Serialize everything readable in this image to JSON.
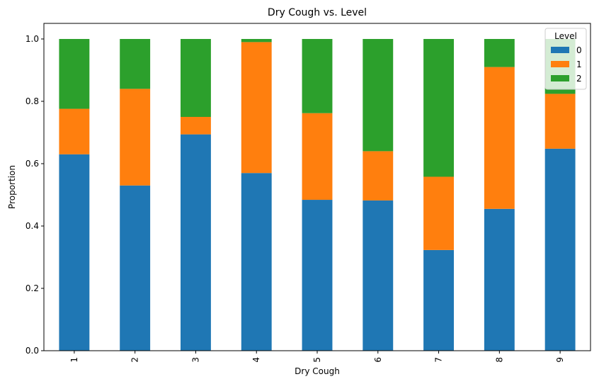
{
  "chart_data": {
    "type": "bar",
    "stacked": true,
    "title": "Dry Cough vs. Level",
    "xlabel": "Dry Cough",
    "ylabel": "Proportion",
    "categories": [
      "1",
      "2",
      "3",
      "4",
      "5",
      "6",
      "7",
      "8",
      "9"
    ],
    "ylim": [
      0,
      1.05
    ],
    "yticks": [
      "0.0",
      "0.2",
      "0.4",
      "0.6",
      "0.8",
      "1.0"
    ],
    "legend": {
      "title": "Level",
      "position": "top-right"
    },
    "series": [
      {
        "name": "0",
        "color": "#1f77b4",
        "values": [
          0.63,
          0.53,
          0.694,
          0.57,
          0.484,
          0.482,
          0.323,
          0.455,
          0.648
        ]
      },
      {
        "name": "1",
        "color": "#ff7f0e",
        "values": [
          0.146,
          0.31,
          0.056,
          0.42,
          0.278,
          0.158,
          0.235,
          0.455,
          0.176
        ]
      },
      {
        "name": "2",
        "color": "#2ca02c",
        "values": [
          0.224,
          0.16,
          0.25,
          0.01,
          0.238,
          0.36,
          0.442,
          0.09,
          0.176
        ]
      }
    ]
  }
}
